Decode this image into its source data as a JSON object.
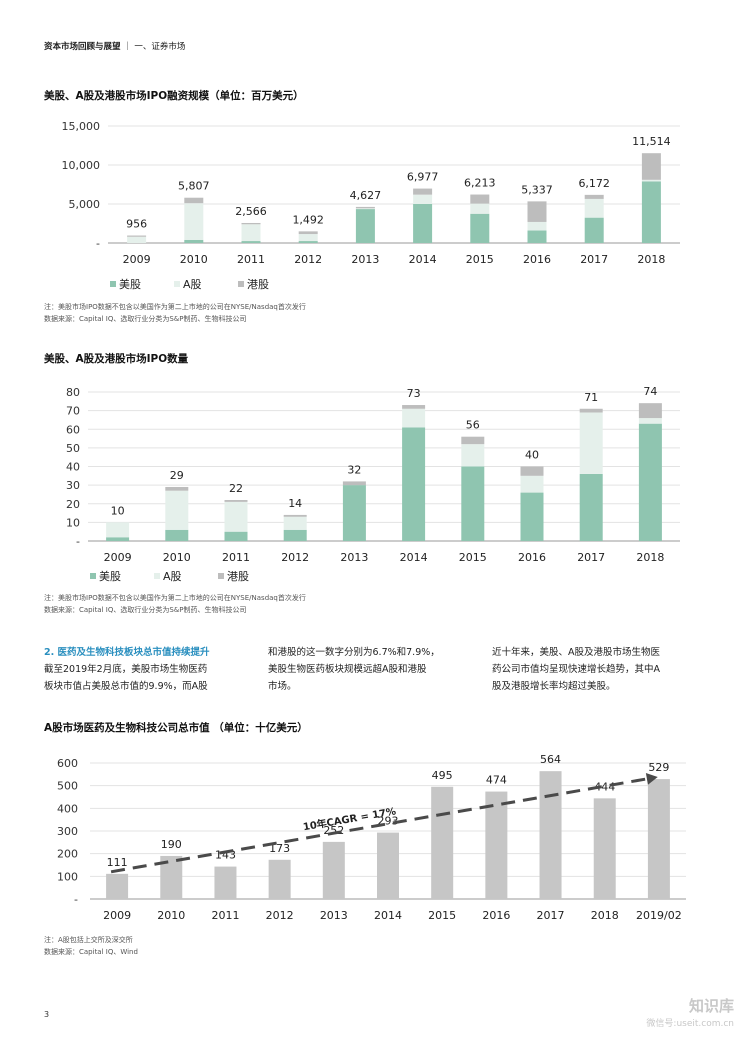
{
  "header": {
    "bold": "资本市场回顾与展望",
    "rest": "｜ 一、证券市场"
  },
  "legend": {
    "us": "美股",
    "a": "A股",
    "hk": "港股"
  },
  "colors": {
    "us": "#8fc5b0",
    "a": "#e5f0eb",
    "hk": "#bdbdbd",
    "bar": "#c6c6c6",
    "axis": "#999999"
  },
  "chart_data": [
    {
      "type": "bar",
      "stacked": true,
      "title": "美股、A股及港股市场IPO融资规模（单位：百万美元）",
      "categories": [
        "2009",
        "2010",
        "2011",
        "2012",
        "2013",
        "2014",
        "2015",
        "2016",
        "2017",
        "2018"
      ],
      "totals": [
        956,
        5807,
        2566,
        1492,
        4627,
        6977,
        6213,
        5337,
        6172,
        11514
      ],
      "total_labels": [
        "956",
        "5,807",
        "2,566",
        "1,492",
        "4,627",
        "6,977",
        "6,213",
        "5,337",
        "6,172",
        "11,514"
      ],
      "series": [
        {
          "name": "美股",
          "values": [
            0,
            400,
            250,
            250,
            4350,
            5000,
            3750,
            1600,
            3250,
            7900
          ]
        },
        {
          "name": "A股",
          "values": [
            800,
            4700,
            2150,
            900,
            100,
            1200,
            1300,
            1100,
            2400,
            200
          ]
        },
        {
          "name": "港股",
          "values": [
            156,
            707,
            166,
            342,
            177,
            777,
            1163,
            2637,
            522,
            3414
          ]
        }
      ],
      "ylim": [
        0,
        15000
      ],
      "yticks": [
        0,
        5000,
        10000,
        15000
      ],
      "ytick_labels": [
        "-",
        "5,000",
        "10,000",
        "15,000"
      ],
      "grid": true,
      "legend_position": "bottom-left"
    },
    {
      "type": "bar",
      "stacked": true,
      "title": "美股、A股及港股市场IPO数量",
      "categories": [
        "2009",
        "2010",
        "2011",
        "2012",
        "2013",
        "2014",
        "2015",
        "2016",
        "2017",
        "2018"
      ],
      "totals": [
        10,
        29,
        22,
        14,
        32,
        73,
        56,
        40,
        71,
        74
      ],
      "total_labels": [
        "10",
        "29",
        "22",
        "14",
        "32",
        "73",
        "56",
        "40",
        "71",
        "74"
      ],
      "series": [
        {
          "name": "美股",
          "values": [
            2,
            6,
            5,
            6,
            30,
            61,
            40,
            26,
            36,
            63
          ]
        },
        {
          "name": "A股",
          "values": [
            8,
            21,
            16,
            7,
            0,
            10,
            12,
            9,
            33,
            3
          ]
        },
        {
          "name": "港股",
          "values": [
            0,
            2,
            1,
            1,
            2,
            2,
            4,
            5,
            2,
            8
          ]
        }
      ],
      "ylim": [
        0,
        80
      ],
      "yticks": [
        0,
        10,
        20,
        30,
        40,
        50,
        60,
        70,
        80
      ],
      "ytick_labels": [
        "-",
        "10",
        "20",
        "30",
        "40",
        "50",
        "60",
        "70",
        "80"
      ],
      "grid": true,
      "legend_position": "bottom-left"
    },
    {
      "type": "bar",
      "title": "A股市场医药及生物科技公司总市值 （单位：十亿美元）",
      "categories": [
        "2009",
        "2010",
        "2011",
        "2012",
        "2013",
        "2014",
        "2015",
        "2016",
        "2017",
        "2018",
        "2019/02"
      ],
      "values": [
        111,
        190,
        143,
        173,
        252,
        293,
        495,
        474,
        564,
        444,
        529
      ],
      "value_labels": [
        "111",
        "190",
        "143",
        "173",
        "252",
        "293",
        "495",
        "474",
        "564",
        "444",
        "529"
      ],
      "ylim": [
        0,
        600
      ],
      "yticks": [
        0,
        100,
        200,
        300,
        400,
        500,
        600
      ],
      "ytick_labels": [
        "-",
        "100",
        "200",
        "300",
        "400",
        "500",
        "600"
      ],
      "grid": true,
      "annotation": "10年CAGR = 17%",
      "trend_line": {
        "from": [
          0,
          120
        ],
        "to": [
          10,
          530
        ]
      }
    }
  ],
  "notes": {
    "note1": "注：美股市场IPO数据不包含以美国作为第二上市地的公司在NYSE/Nasdaq首次发行",
    "source1": "数据来源：Capital IQ、选取行业分类为S&P制药、生物科技公司",
    "note2": "注：美股市场IPO数据不包含以美国作为第二上市地的公司在NYSE/Nasdaq首次发行",
    "source2": "数据来源：Capital IQ、选取行业分类为S&P制药、生物科技公司",
    "note3": "注：A股包括上交所及深交所",
    "source3": "数据来源：Capital IQ、Wind"
  },
  "section2": {
    "heading": "2. 医药及生物科技板块总市值持续提升",
    "col1_l1": "截至2019年2月底，美股市场生物医药",
    "col1_l2": "板块市值占美股总市值的9.9%，而A股",
    "col2_l1": "和港股的这一数字分别为6.7%和7.9%，",
    "col2_l2": "美股生物医药板块规模远超A股和港股",
    "col2_l3": "市场。",
    "col3_l1": "近十年来，美股、A股及港股市场生物医",
    "col3_l2": "药公司市值均呈现快速增长趋势，其中A",
    "col3_l3": "股及港股增长率均超过美股。"
  },
  "page_number": "3",
  "watermark": {
    "name": "知识库",
    "sub": "微信号:useit.com.cn"
  }
}
